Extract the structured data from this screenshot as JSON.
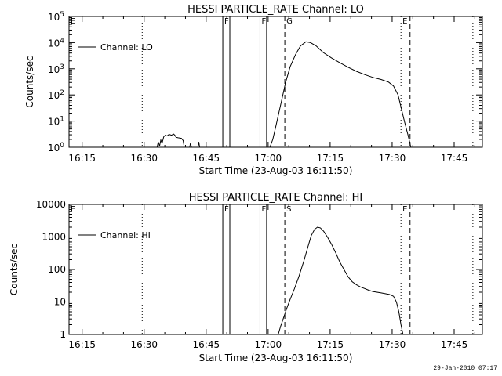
{
  "footer": {
    "timestamp": "29-Jan-2010 07:17"
  },
  "chart_data": [
    {
      "type": "line",
      "title": "HESSI PARTICLE_RATE Channel: LO",
      "xlabel": "Start Time (23-Aug-03 16:11:50)",
      "ylabel": "Counts/sec",
      "yscale": "log",
      "x_unit": "minutes after 16:11:50 (axis start)",
      "xlim": [
        0,
        100
      ],
      "ylim": [
        1,
        100000
      ],
      "x_ticks": [
        {
          "x": 3.17,
          "label": "16:15"
        },
        {
          "x": 18.17,
          "label": "16:30"
        },
        {
          "x": 33.17,
          "label": "16:45"
        },
        {
          "x": 48.17,
          "label": "17:00"
        },
        {
          "x": 63.17,
          "label": "17:15"
        },
        {
          "x": 78.17,
          "label": "17:30"
        },
        {
          "x": 93.17,
          "label": "17:45"
        }
      ],
      "y_ticks": [
        {
          "v": 1,
          "label": "10^0"
        },
        {
          "v": 10,
          "label": "10^1"
        },
        {
          "v": 100,
          "label": "10^2"
        },
        {
          "v": 1000,
          "label": "10^3"
        },
        {
          "v": 10000,
          "label": "10^4"
        },
        {
          "v": 100000,
          "label": "10^5"
        }
      ],
      "legend": {
        "label": "Channel: LO",
        "placement": "top-left"
      },
      "markers": [
        {
          "x": 0,
          "style": "dotted",
          "label": "E"
        },
        {
          "x": 17.7,
          "style": "dotted",
          "label": ""
        },
        {
          "x": 37.2,
          "style": "solid",
          "label": "F"
        },
        {
          "x": 38.9,
          "style": "solid",
          "label": ""
        },
        {
          "x": 46.2,
          "style": "solid",
          "label": "F"
        },
        {
          "x": 47.8,
          "style": "solid",
          "label": ""
        },
        {
          "x": 52.2,
          "style": "dashed",
          "label": "G"
        },
        {
          "x": 80.3,
          "style": "dotted",
          "label": "E"
        },
        {
          "x": 82.5,
          "style": "dashed",
          "label": ""
        },
        {
          "x": 97.7,
          "style": "dotted",
          "label": ""
        }
      ],
      "series": [
        {
          "segments": [
            [
              [
                21.3,
                1.0
              ],
              [
                21.6,
                1.6
              ],
              [
                21.9,
                1.1
              ],
              [
                22.2,
                1.9
              ],
              [
                22.5,
                1.4
              ],
              [
                22.9,
                2.5
              ],
              [
                23.3,
                2.9
              ],
              [
                23.7,
                2.7
              ],
              [
                24.2,
                3.1
              ],
              [
                24.8,
                2.9
              ],
              [
                25.3,
                3.2
              ],
              [
                25.6,
                2.9
              ],
              [
                25.9,
                2.4
              ],
              [
                26.4,
                2.3
              ],
              [
                27.2,
                2.2
              ],
              [
                27.6,
                1.8
              ],
              [
                27.8,
                1.2
              ]
            ],
            [
              [
                29.2,
                1.0
              ],
              [
                29.4,
                1.5
              ],
              [
                29.6,
                1.0
              ]
            ],
            [
              [
                31.2,
                1.0
              ],
              [
                31.4,
                1.6
              ],
              [
                31.6,
                1.0
              ]
            ],
            [
              [
                48.6,
                1.0
              ],
              [
                49.3,
                2
              ],
              [
                50.0,
                6
              ],
              [
                50.8,
                22
              ],
              [
                51.6,
                80
              ],
              [
                52.4,
                300
              ],
              [
                53.5,
                1200
              ],
              [
                54.8,
                3500
              ],
              [
                56.0,
                7500
              ],
              [
                57.3,
                10800
              ],
              [
                58.4,
                10000
              ],
              [
                59.8,
                7500
              ],
              [
                61.5,
                4200
              ],
              [
                63.5,
                2600
              ],
              [
                65.5,
                1700
              ],
              [
                67.5,
                1150
              ],
              [
                69.5,
                800
              ],
              [
                71.5,
                600
              ],
              [
                73.5,
                470
              ],
              [
                75.5,
                390
              ],
              [
                77.3,
                310
              ],
              [
                78.5,
                220
              ],
              [
                79.6,
                100
              ],
              [
                80.4,
                30
              ],
              [
                81.2,
                9
              ],
              [
                82.0,
                3
              ],
              [
                82.7,
                1.0
              ]
            ]
          ]
        }
      ]
    },
    {
      "type": "line",
      "title": "HESSI PARTICLE_RATE Channel: HI",
      "xlabel": "Start Time (23-Aug-03 16:11:50)",
      "ylabel": "Counts/sec",
      "yscale": "log",
      "x_unit": "minutes after 16:11:50 (axis start)",
      "xlim": [
        0,
        100
      ],
      "ylim": [
        1,
        10000
      ],
      "x_ticks": [
        {
          "x": 3.17,
          "label": "16:15"
        },
        {
          "x": 18.17,
          "label": "16:30"
        },
        {
          "x": 33.17,
          "label": "16:45"
        },
        {
          "x": 48.17,
          "label": "17:00"
        },
        {
          "x": 63.17,
          "label": "17:15"
        },
        {
          "x": 78.17,
          "label": "17:30"
        },
        {
          "x": 93.17,
          "label": "17:45"
        }
      ],
      "y_ticks": [
        {
          "v": 1,
          "label": "1"
        },
        {
          "v": 10,
          "label": "10"
        },
        {
          "v": 100,
          "label": "100"
        },
        {
          "v": 1000,
          "label": "1000"
        },
        {
          "v": 10000,
          "label": "10000"
        }
      ],
      "legend": {
        "label": "Channel: HI",
        "placement": "top-left"
      },
      "markers": [
        {
          "x": 0,
          "style": "dotted",
          "label": "E"
        },
        {
          "x": 17.7,
          "style": "dotted",
          "label": ""
        },
        {
          "x": 37.2,
          "style": "solid",
          "label": "F"
        },
        {
          "x": 38.9,
          "style": "solid",
          "label": ""
        },
        {
          "x": 46.2,
          "style": "solid",
          "label": "F"
        },
        {
          "x": 47.8,
          "style": "solid",
          "label": ""
        },
        {
          "x": 52.2,
          "style": "dashed",
          "label": "S"
        },
        {
          "x": 80.3,
          "style": "dotted",
          "label": "E"
        },
        {
          "x": 82.5,
          "style": "dashed",
          "label": ""
        },
        {
          "x": 97.7,
          "style": "dotted",
          "label": ""
        }
      ],
      "series": [
        {
          "segments": [
            [
              [
                50.6,
                1.0
              ],
              [
                51.2,
                1.8
              ],
              [
                51.8,
                3
              ],
              [
                52.6,
                6
              ],
              [
                53.5,
                12
              ],
              [
                54.5,
                25
              ],
              [
                55.6,
                60
              ],
              [
                56.8,
                180
              ],
              [
                57.8,
                500
              ],
              [
                58.6,
                1100
              ],
              [
                59.4,
                1700
              ],
              [
                60.1,
                2000
              ],
              [
                60.8,
                1900
              ],
              [
                61.6,
                1500
              ],
              [
                62.5,
                1000
              ],
              [
                63.5,
                600
              ],
              [
                64.5,
                330
              ],
              [
                65.5,
                170
              ],
              [
                66.5,
                100
              ],
              [
                67.5,
                60
              ],
              [
                68.5,
                42
              ],
              [
                69.5,
                34
              ],
              [
                70.5,
                29
              ],
              [
                71.5,
                26
              ],
              [
                72.5,
                23
              ],
              [
                73.5,
                21
              ],
              [
                74.5,
                20
              ],
              [
                75.5,
                19
              ],
              [
                76.5,
                18
              ],
              [
                77.5,
                17
              ],
              [
                78.5,
                15
              ],
              [
                79.2,
                10
              ],
              [
                79.8,
                5
              ],
              [
                80.3,
                2
              ],
              [
                80.8,
                1.0
              ]
            ]
          ]
        }
      ]
    }
  ]
}
